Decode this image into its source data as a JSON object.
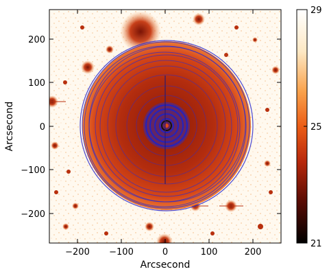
{
  "image": {
    "x_axis_label": "Arcsecond",
    "y_axis_label": "Arcsecond",
    "x_ticks": [
      "−200",
      "−100",
      "0",
      "100",
      "200"
    ],
    "y_ticks": [
      "200",
      "100",
      "0",
      "−100",
      "−200"
    ],
    "colorbar_ticks": [
      "29",
      "25",
      "21"
    ],
    "colors": {
      "background": "#ffffff",
      "contour": "#2a2ad0",
      "disk_inner": "#a8220c",
      "disk_outer": "#e2561f",
      "halo": "#f0b06a",
      "core": "#1b1b7a"
    }
  }
}
